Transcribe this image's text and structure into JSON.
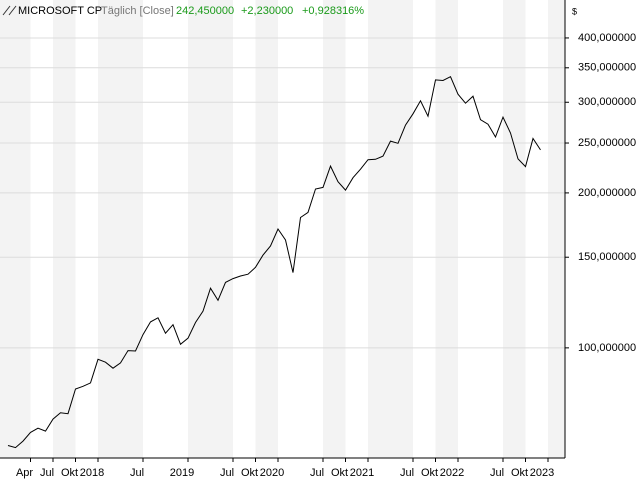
{
  "chart_data": {
    "type": "line",
    "title": "MICROSOFT CP",
    "subtitle": "Täglich [Close]",
    "last_value": "242,450000",
    "change": "+2,230000",
    "change_percent": "+0,928316%",
    "y_axis_label": "$",
    "log_scale": true,
    "grid": true,
    "color": "#000000",
    "x": [
      "2017-01",
      "2017-02",
      "2017-03",
      "2017-04",
      "2017-05",
      "2017-06",
      "2017-07",
      "2017-08",
      "2017-09",
      "2017-10",
      "2017-11",
      "2017-12",
      "2018-01",
      "2018-02",
      "2018-03",
      "2018-04",
      "2018-05",
      "2018-06",
      "2018-07",
      "2018-08",
      "2018-09",
      "2018-10",
      "2018-11",
      "2018-12",
      "2019-01",
      "2019-02",
      "2019-03",
      "2019-04",
      "2019-05",
      "2019-06",
      "2019-07",
      "2019-08",
      "2019-09",
      "2019-10",
      "2019-11",
      "2019-12",
      "2020-01",
      "2020-02",
      "2020-03",
      "2020-04",
      "2020-05",
      "2020-06",
      "2020-07",
      "2020-08",
      "2020-09",
      "2020-10",
      "2020-11",
      "2020-12",
      "2021-01",
      "2021-02",
      "2021-03",
      "2021-04",
      "2021-05",
      "2021-06",
      "2021-07",
      "2021-08",
      "2021-09",
      "2021-10",
      "2021-11",
      "2021-12",
      "2022-01",
      "2022-02",
      "2022-03",
      "2022-04",
      "2022-05",
      "2022-06",
      "2022-07",
      "2022-08",
      "2022-09",
      "2022-10",
      "2022-11",
      "2022-12"
    ],
    "values": [
      64.6,
      64.0,
      65.9,
      68.5,
      69.8,
      68.9,
      72.7,
      74.8,
      74.5,
      83.2,
      84.2,
      85.5,
      95.0,
      93.8,
      91.3,
      93.5,
      98.8,
      98.6,
      106.1,
      112.3,
      114.4,
      106.8,
      110.9,
      101.6,
      104.4,
      112.0,
      117.9,
      130.6,
      123.7,
      134.0,
      136.3,
      137.9,
      139.0,
      143.4,
      151.4,
      157.7,
      170.2,
      162.0,
      140.0,
      179.2,
      183.3,
      203.5,
      205.0,
      225.5,
      210.3,
      202.5,
      214.1,
      222.4,
      232.0,
      232.4,
      235.8,
      252.2,
      249.7,
      270.9,
      284.9,
      301.9,
      281.9,
      331.6,
      330.6,
      336.3,
      311.0,
      298.8,
      308.3,
      277.5,
      271.9,
      256.8,
      280.7,
      261.5,
      232.9,
      225.0,
      255.1,
      242.45
    ],
    "ylim": [
      61.1,
      474
    ],
    "yticks": [
      {
        "value": 100,
        "label": "100,000000"
      },
      {
        "value": 150,
        "label": "150,000000"
      },
      {
        "value": 200,
        "label": "200,000000"
      },
      {
        "value": 250,
        "label": "250,000000"
      },
      {
        "value": 300,
        "label": "300,000000"
      },
      {
        "value": 350,
        "label": "350,000000"
      },
      {
        "value": 400,
        "label": "400,000000"
      }
    ],
    "xticks": [
      {
        "value": "2017-04",
        "label": "Apr"
      },
      {
        "value": "2017-07",
        "label": "Jul"
      },
      {
        "value": "2017-10",
        "label": "Okt"
      },
      {
        "value": "2018-01",
        "label": "2018"
      },
      {
        "value": "2018-07",
        "label": "Jul"
      },
      {
        "value": "2019-01",
        "label": "2019"
      },
      {
        "value": "2019-07",
        "label": "Jul"
      },
      {
        "value": "2019-10",
        "label": "Okt"
      },
      {
        "value": "2020-01",
        "label": "2020"
      },
      {
        "value": "2020-07",
        "label": "Jul"
      },
      {
        "value": "2020-10",
        "label": "Okt"
      },
      {
        "value": "2021-01",
        "label": "2021"
      },
      {
        "value": "2021-07",
        "label": "Jul"
      },
      {
        "value": "2021-10",
        "label": "Okt"
      },
      {
        "value": "2022-01",
        "label": "2022"
      },
      {
        "value": "2022-07",
        "label": "Jul"
      },
      {
        "value": "2022-10",
        "label": "Okt"
      },
      {
        "value": "2023-01",
        "label": "2023"
      }
    ]
  }
}
